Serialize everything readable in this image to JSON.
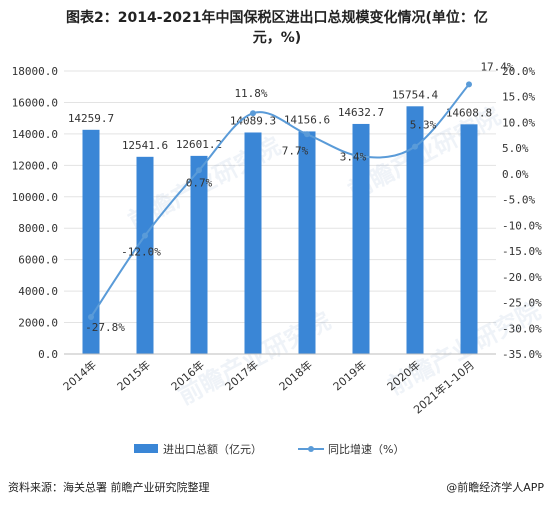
{
  "title": {
    "line1": "图表2：2014-2021年中国保税区进出口总规模变化情况(单位：亿",
    "line2": "元，%)"
  },
  "source": "资料来源：海关总署 前瞻产业研究院整理",
  "credit": "@前瞻经济学人APP",
  "watermark": "前瞻产业研究院",
  "chart_data": {
    "type": "bar",
    "categories": [
      "2014年",
      "2015年",
      "2016年",
      "2017年",
      "2018年",
      "2019年",
      "2020年",
      "2021年1-10月"
    ],
    "series": [
      {
        "name": "进出口总额（亿元）",
        "type": "bar",
        "axis": "left",
        "values": [
          14259.7,
          12541.6,
          12601.2,
          14089.3,
          14156.6,
          14632.7,
          15754.4,
          14608.8
        ],
        "labels": [
          "14259.7",
          "12541.6",
          "12601.2",
          "14089.3",
          "14156.6",
          "14632.7",
          "15754.4",
          "14608.8"
        ],
        "color": "#3A86D6"
      },
      {
        "name": "同比增速（%）",
        "type": "line",
        "axis": "right",
        "values": [
          -27.8,
          -12.0,
          0.7,
          11.8,
          7.7,
          3.4,
          5.3,
          17.4
        ],
        "labels": [
          "-27.8%",
          "-12.0%",
          "0.7%",
          "11.8%",
          "7.7%",
          "3.4%",
          "5.3%",
          "17.4%"
        ],
        "color": "#5A9BD8"
      }
    ],
    "y_left": {
      "range": [
        0,
        18000
      ],
      "ticks": [
        "0.0",
        "2000.0",
        "4000.0",
        "6000.0",
        "8000.0",
        "10000.0",
        "12000.0",
        "14000.0",
        "16000.0",
        "18000.0"
      ]
    },
    "y_right": {
      "range": [
        -35,
        20
      ],
      "ticks": [
        "-35.0%",
        "-30.0%",
        "-25.0%",
        "-20.0%",
        "-15.0%",
        "-10.0%",
        "-5.0%",
        "0.0%",
        "5.0%",
        "10.0%",
        "15.0%",
        "20.0%"
      ]
    },
    "grid": true,
    "legend_position": "bottom"
  }
}
